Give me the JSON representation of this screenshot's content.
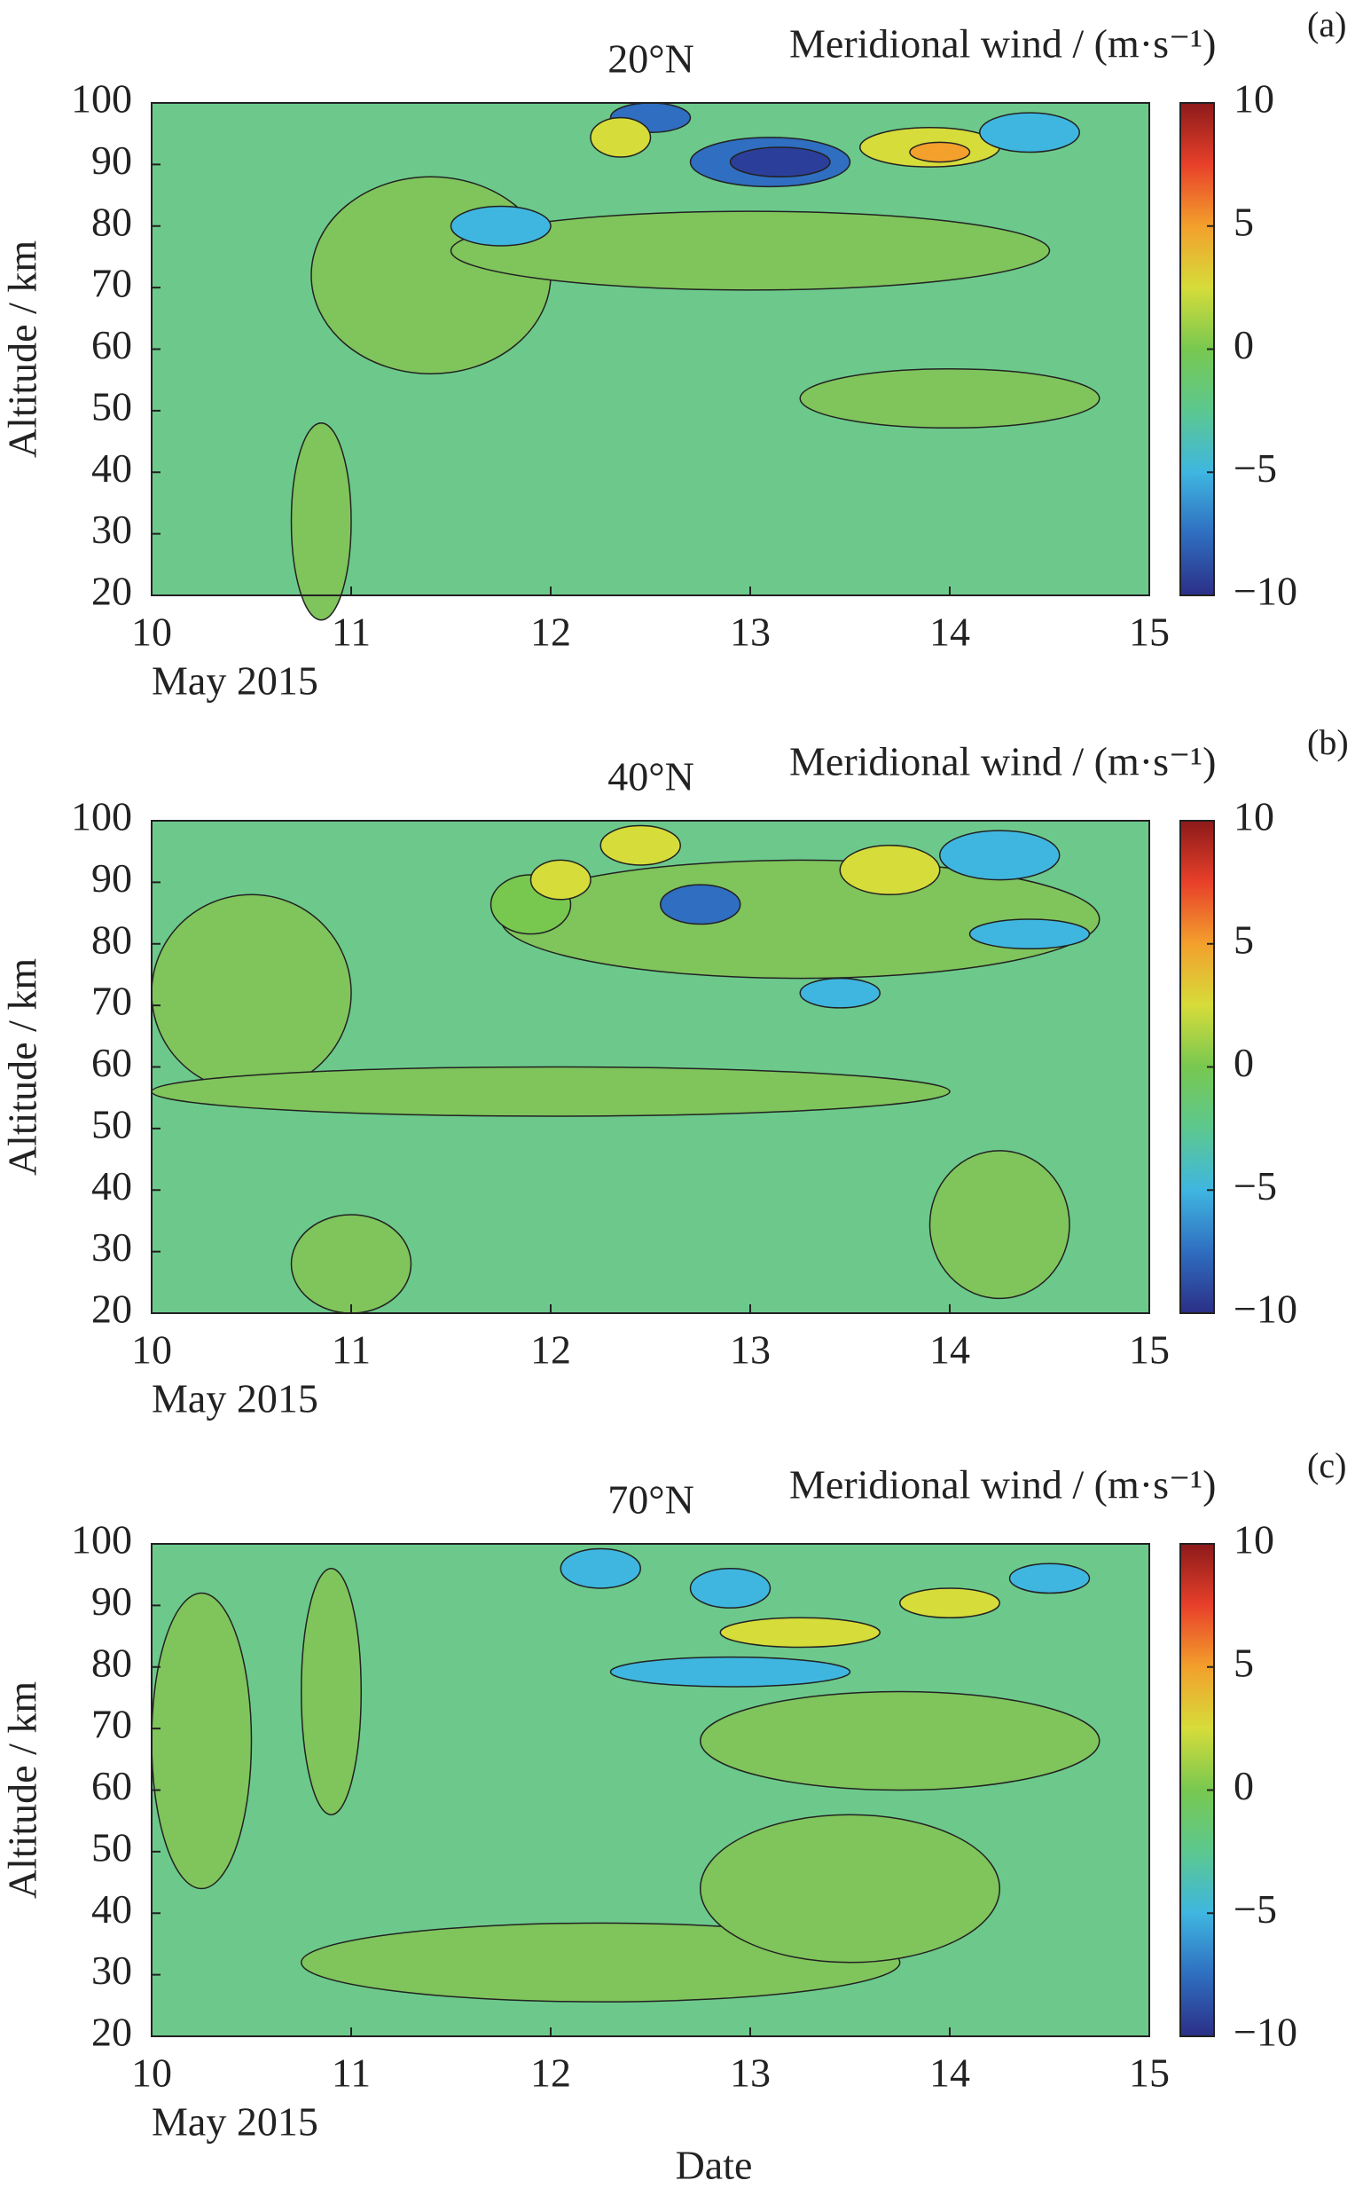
{
  "chart_data": [
    {
      "type": "contour",
      "title": "20°N",
      "panel_label": "(a)",
      "colorbar_label": "Meridional wind / (m·s⁻¹)",
      "x_sublabel": "May 2015",
      "ylabel": "Altitude / km",
      "xlim": [
        10,
        15
      ],
      "xticks": [
        10,
        11,
        12,
        13,
        14,
        15
      ],
      "ylim": [
        20,
        100
      ],
      "yticks": [
        20,
        30,
        40,
        50,
        60,
        70,
        80,
        90,
        100
      ],
      "clim": [
        -10,
        10
      ],
      "cticks": [
        {
          "value": -10,
          "label": "−10"
        },
        {
          "value": -5,
          "label": "−5"
        },
        0,
        5,
        10
      ],
      "colormap": [
        "#2b2f86",
        "#2f6ec0",
        "#3fb6e0",
        "#5cc88f",
        "#78c850",
        "#d6dc3a",
        "#f3a02c",
        "#e8402a",
        "#8c1a1a"
      ]
    },
    {
      "type": "contour",
      "title": "40°N",
      "panel_label": "(b)",
      "colorbar_label": "Meridional wind / (m·s⁻¹)",
      "x_sublabel": "May 2015",
      "ylabel": "Altitude / km",
      "xlim": [
        10,
        15
      ],
      "xticks": [
        10,
        11,
        12,
        13,
        14,
        15
      ],
      "ylim": [
        20,
        100
      ],
      "yticks": [
        20,
        30,
        40,
        50,
        60,
        70,
        80,
        90,
        100
      ],
      "clim": [
        -10,
        10
      ],
      "cticks": [
        {
          "value": -10,
          "label": "−10"
        },
        {
          "value": -5,
          "label": "−5"
        },
        0,
        5,
        10
      ],
      "colormap": [
        "#2b2f86",
        "#2f6ec0",
        "#3fb6e0",
        "#5cc88f",
        "#78c850",
        "#d6dc3a",
        "#f3a02c",
        "#e8402a",
        "#8c1a1a"
      ]
    },
    {
      "type": "contour",
      "title": "70°N",
      "panel_label": "(c)",
      "colorbar_label": "Meridional wind / (m·s⁻¹)",
      "x_sublabel": "May 2015",
      "ylabel": "Altitude / km",
      "xlabel": "Date",
      "xlim": [
        10,
        15
      ],
      "xticks": [
        10,
        11,
        12,
        13,
        14,
        15
      ],
      "ylim": [
        20,
        100
      ],
      "yticks": [
        20,
        30,
        40,
        50,
        60,
        70,
        80,
        90,
        100
      ],
      "clim": [
        -10,
        10
      ],
      "cticks": [
        {
          "value": -10,
          "label": "−10"
        },
        {
          "value": -5,
          "label": "−5"
        },
        0,
        5,
        10
      ],
      "colormap": [
        "#2b2f86",
        "#2f6ec0",
        "#3fb6e0",
        "#5cc88f",
        "#78c850",
        "#d6dc3a",
        "#f3a02c",
        "#e8402a",
        "#8c1a1a"
      ]
    }
  ]
}
